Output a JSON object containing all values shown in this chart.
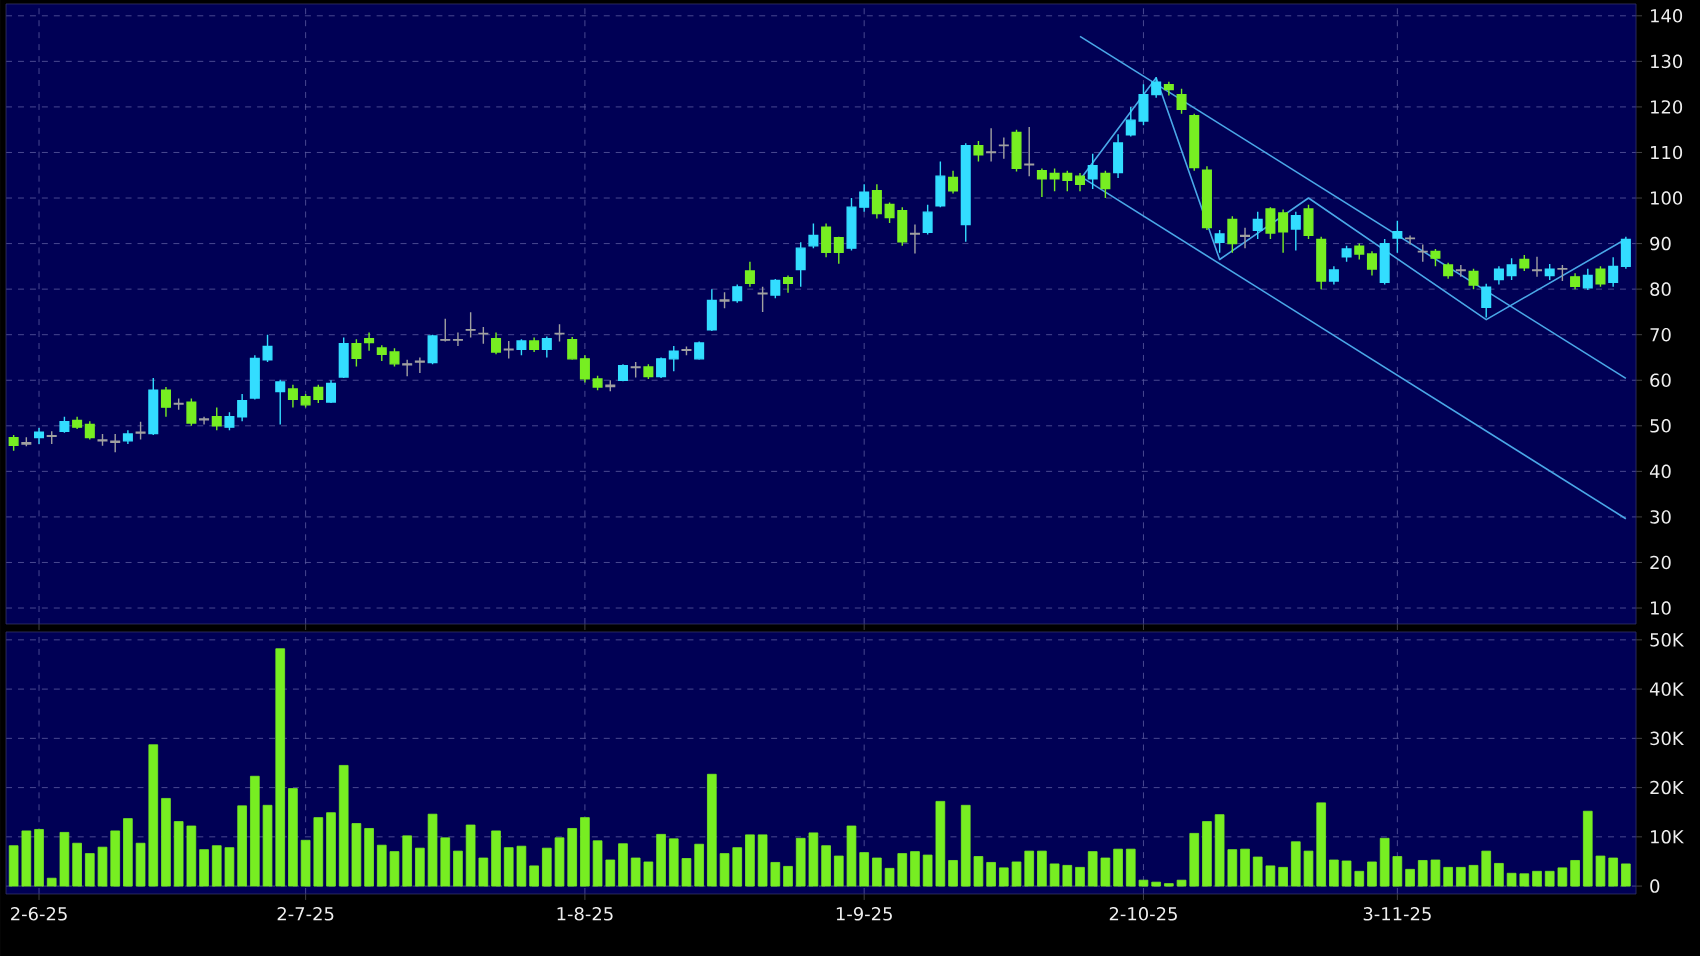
{
  "chart_data": [
    {
      "type": "candlestick",
      "categories": [
        null,
        null,
        null,
        null,
        null,
        null,
        null,
        null,
        null,
        null,
        null,
        null,
        null,
        null,
        null,
        null,
        null,
        null,
        null,
        null,
        null,
        null,
        null,
        null,
        null,
        null,
        null,
        null,
        null,
        null,
        null,
        null,
        null,
        null,
        null,
        null,
        null,
        null,
        null,
        null,
        null,
        null,
        null,
        null,
        null,
        null,
        null,
        null,
        null,
        null,
        null,
        null,
        null,
        null,
        null,
        null,
        null,
        null,
        null,
        null,
        null,
        null,
        null,
        null,
        null,
        null,
        null,
        null,
        null,
        null,
        null,
        null,
        null,
        null,
        null,
        null,
        null,
        null,
        null,
        null,
        null,
        null,
        null,
        null,
        null,
        null,
        null,
        null,
        null,
        null,
        null,
        null,
        null,
        null,
        null,
        null,
        null,
        null,
        null,
        null,
        null,
        null,
        null,
        null,
        null,
        null,
        null,
        null,
        null,
        null,
        null,
        null,
        null,
        null,
        null,
        null,
        null,
        null,
        null,
        null,
        null,
        null,
        null,
        null,
        null,
        null,
        null,
        null
      ],
      "ohlc": [
        [
          47.4,
          48,
          44.5,
          45.7
        ],
        [
          46,
          47.5,
          45.5,
          46.3
        ],
        [
          47.4,
          49.5,
          46,
          48.6
        ],
        [
          47.7,
          48.8,
          46,
          47.8
        ],
        [
          48.8,
          52,
          48.5,
          50.9
        ],
        [
          51.2,
          52,
          49.3,
          49.7
        ],
        [
          50.3,
          51,
          47,
          47.4
        ],
        [
          46.9,
          48.2,
          45.6,
          46.7
        ],
        [
          46.6,
          48.2,
          44.2,
          46.4
        ],
        [
          46.7,
          49,
          46,
          48.2
        ],
        [
          48.4,
          50.9,
          47,
          48.6
        ],
        [
          48.3,
          60.5,
          48,
          57.8
        ],
        [
          57.8,
          58.5,
          52,
          54.1
        ],
        [
          54.8,
          56,
          53.5,
          54.9
        ],
        [
          55.2,
          56,
          50,
          50.6
        ],
        [
          51.3,
          52,
          50.3,
          51.5
        ],
        [
          52,
          54,
          49,
          50
        ],
        [
          49.7,
          53,
          49,
          52
        ],
        [
          52,
          57,
          51,
          55.5
        ],
        [
          56.1,
          65.5,
          55.8,
          64.8
        ],
        [
          64.5,
          70,
          64,
          67.4
        ],
        [
          57.5,
          60.1,
          50.3,
          59.6
        ],
        [
          58.1,
          59,
          54,
          55.8
        ],
        [
          56.4,
          57,
          54,
          54.6
        ],
        [
          58.4,
          59,
          55,
          55.8
        ],
        [
          55.2,
          60,
          55,
          59.3
        ],
        [
          60.7,
          69.4,
          60.5,
          68
        ],
        [
          68,
          69,
          63,
          64.8
        ],
        [
          69.1,
          70.5,
          66.5,
          68.3
        ],
        [
          67.1,
          67.7,
          64.2,
          65.7
        ],
        [
          66.2,
          67,
          63,
          63.6
        ],
        [
          63.6,
          64.5,
          60.9,
          63.4
        ],
        [
          64,
          65,
          61.6,
          64.2
        ],
        [
          63.9,
          70,
          63.5,
          69.7
        ],
        [
          68.8,
          73.5,
          68.5,
          68.9
        ],
        [
          68.8,
          70.5,
          67.5,
          68.9
        ],
        [
          71,
          74.9,
          69.4,
          71.1
        ],
        [
          70.3,
          71.7,
          68,
          70.2
        ],
        [
          69.1,
          70.5,
          65.7,
          66.2
        ],
        [
          66.8,
          68.6,
          64.8,
          66.7
        ],
        [
          66.8,
          69,
          65.5,
          68.6
        ],
        [
          68.6,
          69.4,
          66.2,
          66.8
        ],
        [
          66.8,
          69.6,
          65,
          69.1
        ],
        [
          70.3,
          72.3,
          68.5,
          70.2
        ],
        [
          68.9,
          69.5,
          64.5,
          64.7
        ],
        [
          64.7,
          65.5,
          59.5,
          60.3
        ],
        [
          60.3,
          61,
          57.8,
          58.5
        ],
        [
          58.6,
          60,
          57.6,
          58.9
        ],
        [
          60,
          63.5,
          59.8,
          63.2
        ],
        [
          62.8,
          64,
          60.6,
          62.9
        ],
        [
          62.9,
          63.5,
          60.3,
          60.8
        ],
        [
          60.8,
          65,
          60.5,
          64.7
        ],
        [
          64.7,
          67.5,
          62,
          66.4
        ],
        [
          66.6,
          67.4,
          65.5,
          66.7
        ],
        [
          64.7,
          68.5,
          64.5,
          68.2
        ],
        [
          71.1,
          80,
          70.8,
          77.5
        ],
        [
          77.4,
          79.3,
          75.8,
          77.6
        ],
        [
          77.5,
          81,
          77,
          80.5
        ],
        [
          84,
          86,
          80.5,
          81.3
        ],
        [
          79,
          80.5,
          75,
          79.1
        ],
        [
          78.7,
          82.2,
          78,
          81.9
        ],
        [
          82.5,
          83,
          79.2,
          81.3
        ],
        [
          84.3,
          90.3,
          80.5,
          89
        ],
        [
          89.5,
          94.4,
          89,
          91.8
        ],
        [
          93.6,
          94.4,
          87,
          88.1
        ],
        [
          91.3,
          91.5,
          85.6,
          88.1
        ],
        [
          89,
          100,
          88.5,
          98
        ],
        [
          98,
          103,
          97,
          101.3
        ],
        [
          101.6,
          103,
          95.5,
          96.6
        ],
        [
          98.6,
          99,
          94.5,
          95.7
        ],
        [
          97.2,
          98,
          89.5,
          90.4
        ],
        [
          92.2,
          94.2,
          87.8,
          92.1
        ],
        [
          92.5,
          98.5,
          92,
          96.9
        ],
        [
          98.3,
          108,
          98,
          104.8
        ],
        [
          104.5,
          106,
          101,
          101.6
        ],
        [
          94.2,
          112,
          90.4,
          111.5
        ],
        [
          111.5,
          112.5,
          108,
          109.5
        ],
        [
          110.1,
          115.3,
          108,
          110
        ],
        [
          111.5,
          113.3,
          108.6,
          111.6
        ],
        [
          114.4,
          115,
          105.8,
          106.5
        ],
        [
          107.4,
          115.6,
          104.8,
          107.3
        ],
        [
          106,
          106.5,
          100.2,
          104.2
        ],
        [
          105.4,
          106.5,
          101.5,
          104.2
        ],
        [
          105.4,
          106,
          101.5,
          103.9
        ],
        [
          104.8,
          105.5,
          101.5,
          103
        ],
        [
          104.2,
          109.7,
          102,
          107.1
        ],
        [
          105.4,
          106,
          100,
          102.1
        ],
        [
          105.6,
          114,
          104.4,
          112.1
        ],
        [
          113.9,
          120,
          113.5,
          117.1
        ],
        [
          116.9,
          125,
          116,
          122.7
        ],
        [
          122.7,
          126.5,
          122,
          125.4
        ],
        [
          124.9,
          125.5,
          122.5,
          123.8
        ],
        [
          122.7,
          124,
          118.5,
          119.5
        ],
        [
          118.1,
          118.5,
          106,
          106.7
        ],
        [
          106.1,
          107,
          93,
          93.5
        ],
        [
          90.3,
          93,
          88,
          92.1
        ],
        [
          95.3,
          96,
          88,
          90
        ],
        [
          91.6,
          93.5,
          89,
          91.8
        ],
        [
          92.9,
          97,
          91,
          95.3
        ],
        [
          97.6,
          98,
          91,
          92.3
        ],
        [
          96.7,
          97.5,
          88,
          92.6
        ],
        [
          93.2,
          97,
          88.5,
          96.1
        ],
        [
          97.6,
          98.5,
          91,
          91.8
        ],
        [
          90.9,
          91.5,
          80,
          81.8
        ],
        [
          81.8,
          85,
          81,
          84.2
        ],
        [
          87.1,
          89.5,
          86,
          88.8
        ],
        [
          89.4,
          90,
          86.5,
          87.7
        ],
        [
          87.7,
          88.3,
          83,
          84.4
        ],
        [
          81.5,
          91,
          81,
          90
        ],
        [
          91.2,
          95,
          88,
          92.6
        ],
        [
          91.2,
          91.8,
          89.8,
          91.1
        ],
        [
          88.3,
          89.8,
          86,
          88.2
        ],
        [
          88.3,
          88.8,
          85,
          86.8
        ],
        [
          85.3,
          85.8,
          82.3,
          83
        ],
        [
          84.2,
          85.3,
          82.7,
          84.1
        ],
        [
          83.9,
          84.5,
          80,
          80.9
        ],
        [
          76,
          81.2,
          73.8,
          80.4
        ],
        [
          82.1,
          85,
          81,
          84.4
        ],
        [
          83,
          86.8,
          82,
          85.3
        ],
        [
          86.5,
          87.5,
          84,
          84.7
        ],
        [
          84.2,
          87.1,
          82.7,
          84.1
        ],
        [
          83,
          85.5,
          82,
          84.4
        ],
        [
          84.4,
          85.3,
          81.8,
          84.5
        ],
        [
          82.7,
          83.5,
          80,
          80.6
        ],
        [
          80.3,
          84.5,
          79.8,
          83
        ],
        [
          84.4,
          85,
          80.5,
          81.2
        ],
        [
          81.5,
          87,
          80.5,
          85
        ],
        [
          85,
          91.5,
          84.5,
          90.9
        ]
      ],
      "colors": [
        "#77ee22",
        "#a0a0a0",
        "#33ddff",
        "#a0a0a0",
        "#33ddff",
        "#77ee22",
        "#77ee22",
        "#a0a0a0",
        "#a0a0a0",
        "#33ddff",
        "#a0a0a0",
        "#33ddff",
        "#77ee22",
        "#a0a0a0",
        "#77ee22",
        "#a0a0a0",
        "#77ee22",
        "#33ddff",
        "#33ddff",
        "#33ddff",
        "#33ddff",
        "#33ddff",
        "#77ee22",
        "#77ee22",
        "#77ee22",
        "#33ddff",
        "#33ddff",
        "#77ee22",
        "#77ee22",
        "#77ee22",
        "#77ee22",
        "#a0a0a0",
        "#a0a0a0",
        "#33ddff",
        "#a0a0a0",
        "#a0a0a0",
        "#a0a0a0",
        "#a0a0a0",
        "#77ee22",
        "#a0a0a0",
        "#33ddff",
        "#77ee22",
        "#33ddff",
        "#a0a0a0",
        "#77ee22",
        "#77ee22",
        "#77ee22",
        "#a0a0a0",
        "#33ddff",
        "#a0a0a0",
        "#77ee22",
        "#33ddff",
        "#33ddff",
        "#a0a0a0",
        "#33ddff",
        "#33ddff",
        "#a0a0a0",
        "#33ddff",
        "#77ee22",
        "#a0a0a0",
        "#33ddff",
        "#77ee22",
        "#33ddff",
        "#33ddff",
        "#77ee22",
        "#77ee22",
        "#33ddff",
        "#33ddff",
        "#77ee22",
        "#77ee22",
        "#77ee22",
        "#a0a0a0",
        "#33ddff",
        "#33ddff",
        "#77ee22",
        "#33ddff",
        "#77ee22",
        "#a0a0a0",
        "#a0a0a0",
        "#77ee22",
        "#a0a0a0",
        "#77ee22",
        "#77ee22",
        "#77ee22",
        "#77ee22",
        "#33ddff",
        "#77ee22",
        "#33ddff",
        "#33ddff",
        "#33ddff",
        "#33ddff",
        "#77ee22",
        "#77ee22",
        "#77ee22",
        "#77ee22",
        "#33ddff",
        "#77ee22",
        "#a0a0a0",
        "#33ddff",
        "#77ee22",
        "#77ee22",
        "#33ddff",
        "#77ee22",
        "#77ee22",
        "#33ddff",
        "#33ddff",
        "#77ee22",
        "#77ee22",
        "#33ddff",
        "#33ddff",
        "#a0a0a0",
        "#a0a0a0",
        "#77ee22",
        "#77ee22",
        "#a0a0a0",
        "#77ee22",
        "#33ddff",
        "#33ddff",
        "#33ddff",
        "#77ee22",
        "#a0a0a0",
        "#33ddff",
        "#a0a0a0",
        "#77ee22",
        "#33ddff",
        "#77ee22",
        "#33ddff",
        "#33ddff"
      ],
      "series": [
        {
          "type": "line",
          "color": "#4aa8e8",
          "values": [
            null,
            null,
            null,
            null,
            null,
            null,
            null,
            null,
            null,
            null,
            null,
            null,
            null,
            null,
            null,
            null,
            null,
            null,
            null,
            null,
            null,
            null,
            null,
            null,
            null,
            null,
            null,
            null,
            null,
            null,
            null,
            null,
            null,
            null,
            null,
            null,
            null,
            null,
            null,
            null,
            null,
            null,
            null,
            null,
            null,
            null,
            null,
            null,
            null,
            null,
            null,
            null,
            null,
            null,
            null,
            null,
            null,
            null,
            null,
            null,
            null,
            null,
            null,
            null,
            null,
            null,
            null,
            null,
            null,
            null,
            null,
            null,
            null,
            null,
            null,
            null,
            null,
            null,
            null,
            null,
            null,
            null,
            null,
            null,
            135.5,
            null,
            null,
            null,
            null,
            null,
            null,
            null,
            null,
            null,
            null,
            null,
            null,
            null,
            null,
            null,
            null,
            null,
            null,
            null,
            null,
            null,
            null,
            null,
            null,
            null,
            null,
            null,
            null,
            null,
            null,
            null,
            null,
            null,
            null,
            null,
            null,
            null,
            null,
            null,
            null,
            null,
            null,
            60.4
          ]
        },
        {
          "type": "line",
          "color": "#4aa8e8",
          "values": [
            null,
            null,
            null,
            null,
            null,
            null,
            null,
            null,
            null,
            null,
            null,
            null,
            null,
            null,
            null,
            null,
            null,
            null,
            null,
            null,
            null,
            null,
            null,
            null,
            null,
            null,
            null,
            null,
            null,
            null,
            null,
            null,
            null,
            null,
            null,
            null,
            null,
            null,
            null,
            null,
            null,
            null,
            null,
            null,
            null,
            null,
            null,
            null,
            null,
            null,
            null,
            null,
            null,
            null,
            null,
            null,
            null,
            null,
            null,
            null,
            null,
            null,
            null,
            null,
            null,
            null,
            null,
            null,
            null,
            null,
            null,
            null,
            null,
            null,
            null,
            null,
            null,
            null,
            null,
            null,
            null,
            null,
            null,
            null,
            104.8,
            null,
            null,
            null,
            null,
            null,
            null,
            null,
            null,
            null,
            null,
            null,
            null,
            null,
            null,
            null,
            null,
            null,
            null,
            null,
            null,
            null,
            null,
            null,
            null,
            null,
            null,
            null,
            null,
            null,
            null,
            null,
            null,
            null,
            null,
            null,
            null,
            null,
            null,
            null,
            null,
            null,
            null,
            29.6
          ]
        },
        {
          "type": "line",
          "color": "#4aa8e8",
          "values": [
            null,
            null,
            null,
            null,
            null,
            null,
            null,
            null,
            null,
            null,
            null,
            null,
            null,
            null,
            null,
            null,
            null,
            null,
            null,
            null,
            null,
            null,
            null,
            null,
            null,
            null,
            null,
            null,
            null,
            null,
            null,
            null,
            null,
            null,
            null,
            null,
            null,
            null,
            null,
            null,
            null,
            null,
            null,
            null,
            null,
            null,
            null,
            null,
            null,
            null,
            null,
            null,
            null,
            null,
            null,
            null,
            null,
            null,
            null,
            null,
            null,
            null,
            null,
            null,
            null,
            null,
            null,
            null,
            null,
            null,
            null,
            null,
            null,
            null,
            null,
            null,
            null,
            null,
            null,
            null,
            null,
            null,
            null,
            null,
            104,
            null,
            null,
            null,
            null,
            null,
            126.4,
            null,
            null,
            null,
            null,
            86.5,
            null,
            null,
            null,
            null,
            null,
            null,
            100,
            null,
            null,
            null,
            null,
            null,
            null,
            null,
            null,
            null,
            null,
            null,
            null,
            null,
            73.3,
            null,
            null,
            null,
            null,
            null,
            null,
            null,
            null,
            null,
            null,
            91
          ]
        }
      ],
      "ylim": [
        6.5,
        142.6
      ],
      "yticks": [
        10,
        20,
        30,
        40,
        50,
        60,
        70,
        80,
        90,
        100,
        110,
        120,
        130,
        140
      ],
      "grid": true
    },
    {
      "type": "bar",
      "categories": [
        null,
        null,
        "2-6-25",
        null,
        null,
        null,
        null,
        null,
        null,
        null,
        null,
        null,
        null,
        null,
        null,
        null,
        null,
        null,
        null,
        null,
        null,
        null,
        null,
        "2-7-25",
        null,
        null,
        null,
        null,
        null,
        null,
        null,
        null,
        null,
        null,
        null,
        null,
        null,
        null,
        null,
        null,
        null,
        null,
        null,
        null,
        null,
        "1-8-25",
        null,
        null,
        null,
        null,
        null,
        null,
        null,
        null,
        null,
        null,
        null,
        null,
        null,
        null,
        null,
        null,
        null,
        null,
        null,
        null,
        null,
        "1-9-25",
        null,
        null,
        null,
        null,
        null,
        null,
        null,
        null,
        null,
        null,
        null,
        null,
        null,
        null,
        null,
        null,
        null,
        null,
        null,
        null,
        null,
        "2-10-25",
        null,
        null,
        null,
        null,
        null,
        null,
        null,
        null,
        null,
        null,
        null,
        null,
        null,
        null,
        null,
        null,
        null,
        null,
        null,
        "3-11-25",
        null,
        null,
        null,
        null,
        null,
        null,
        null,
        null,
        null,
        null,
        null,
        null,
        null,
        null,
        null,
        null,
        null,
        null
      ],
      "values": [
        8200,
        11200,
        11500,
        1600,
        10900,
        8700,
        6600,
        7900,
        11200,
        13700,
        8700,
        28700,
        17800,
        13100,
        12200,
        7400,
        8200,
        7800,
        16300,
        22300,
        16400,
        48200,
        19800,
        9300,
        13900,
        14900,
        24500,
        12700,
        11700,
        8300,
        7000,
        10200,
        7700,
        14600,
        9800,
        7100,
        12400,
        5700,
        11200,
        7800,
        8100,
        4100,
        7700,
        9800,
        11700,
        13900,
        9200,
        5300,
        8600,
        5700,
        4900,
        10500,
        9600,
        5600,
        8500,
        22700,
        6600,
        7800,
        10400,
        10400,
        4800,
        4000,
        9700,
        10800,
        8200,
        6100,
        12200,
        6800,
        5700,
        3600,
        6600,
        7000,
        6300,
        17200,
        5200,
        16400,
        6000,
        4800,
        3700,
        4900,
        7100,
        7100,
        4500,
        4200,
        3800,
        7000,
        5700,
        7500,
        7500,
        1200,
        800,
        500,
        1200,
        10700,
        13100,
        14500,
        7400,
        7500,
        5900,
        4100,
        3800,
        9000,
        7100,
        16900,
        5300,
        5100,
        3000,
        4900,
        9700,
        6000,
        3400,
        5200,
        5300,
        3800,
        3800,
        4200,
        7100,
        4600,
        2600,
        2500,
        3000,
        3000,
        3700,
        5200,
        15200,
        6100,
        5700,
        4500
      ],
      "color": "#77ee22",
      "ylim": [
        -1600,
        51600
      ],
      "yticks": [
        0,
        {
          "value": 10000,
          "label": "10K"
        },
        {
          "value": 20000,
          "label": "20K"
        },
        {
          "value": 30000,
          "label": "30K"
        },
        {
          "value": 40000,
          "label": "40K"
        },
        {
          "value": 50000,
          "label": "50K"
        }
      ],
      "grid": true
    }
  ]
}
